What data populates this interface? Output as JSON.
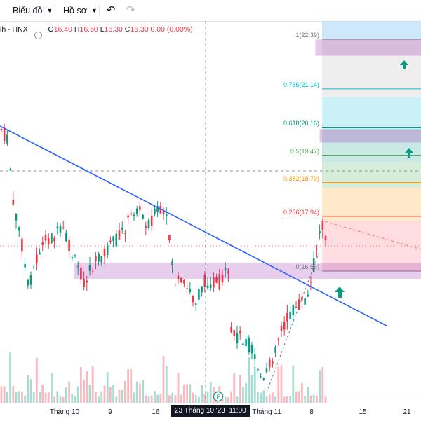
{
  "toolbar": {
    "chart_menu_label": "Biểu đồ",
    "profile_menu_label": "Hồ sơ",
    "undo_icon": "undo-icon",
    "redo_icon": "redo-icon"
  },
  "legend": {
    "symbol": "lh · HNX",
    "open_label": "O",
    "open_value": "16.40",
    "high_label": "H",
    "high_value": "16.50",
    "low_label": "L",
    "low_value": "16.30",
    "close_label": "C",
    "close_value": "16.30",
    "change": "0.00 (0.00%)"
  },
  "fibonacci": {
    "levels": [
      {
        "label": "1(22.39)",
        "ratio": 1,
        "price": 22.39,
        "color": "#787b86"
      },
      {
        "label": "0.786(21.14)",
        "ratio": 0.786,
        "price": 21.14,
        "color": "#00bcd4"
      },
      {
        "label": "0.618(20.16)",
        "ratio": 0.618,
        "price": 20.16,
        "color": "#089981"
      },
      {
        "label": "0.5(19.47)",
        "ratio": 0.5,
        "price": 19.47,
        "color": "#4caf50"
      },
      {
        "label": "0.382(18.79)",
        "ratio": 0.382,
        "price": 18.79,
        "color": "#ff9800"
      },
      {
        "label": "0.236(17.94)",
        "ratio": 0.236,
        "price": 17.94,
        "color": "#f23645"
      },
      {
        "label": "0(16.56)",
        "ratio": 0,
        "price": 16.56,
        "color": "#787b86"
      }
    ]
  },
  "time_axis": {
    "ticks": [
      "Tháng 10",
      "9",
      "16",
      "Tháng 11",
      "8",
      "15",
      "21"
    ],
    "crosshair_label": "23 Tháng 10 '23",
    "crosshair_time": "11:00"
  },
  "event_marker": "F",
  "colors": {
    "up": "#089981",
    "down": "#f23645",
    "trendline": "#2962ff",
    "zone": "#9c27b0"
  }
}
